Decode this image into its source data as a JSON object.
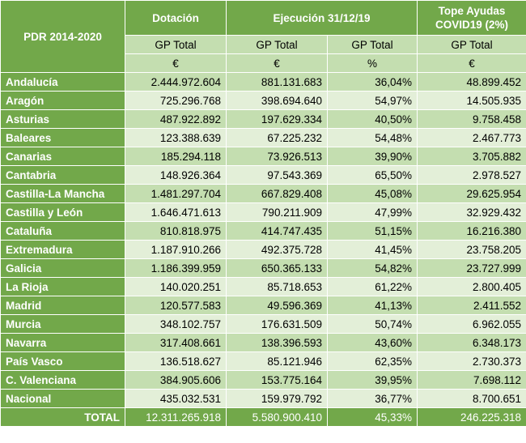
{
  "header": {
    "corner": "PDR 2014-2020",
    "groups": [
      "Dotación",
      "Ejecución 31/12/19",
      "Tope Ayudas COVID19 (2%)"
    ],
    "metrics": [
      "GP Total",
      "GP Total",
      "GP Total",
      "GP Total"
    ],
    "units": [
      "€",
      "€",
      "%",
      "€"
    ]
  },
  "rows": [
    {
      "name": "Andalucía",
      "dotacion": "2.444.972.604",
      "ejecucion": "881.131.683",
      "pct": "36,04%",
      "tope": "48.899.452"
    },
    {
      "name": "Aragón",
      "dotacion": "725.296.768",
      "ejecucion": "398.694.640",
      "pct": "54,97%",
      "tope": "14.505.935"
    },
    {
      "name": "Asturias",
      "dotacion": "487.922.892",
      "ejecucion": "197.629.334",
      "pct": "40,50%",
      "tope": "9.758.458"
    },
    {
      "name": "Baleares",
      "dotacion": "123.388.639",
      "ejecucion": "67.225.232",
      "pct": "54,48%",
      "tope": "2.467.773"
    },
    {
      "name": "Canarias",
      "dotacion": "185.294.118",
      "ejecucion": "73.926.513",
      "pct": "39,90%",
      "tope": "3.705.882"
    },
    {
      "name": "Cantabria",
      "dotacion": "148.926.364",
      "ejecucion": "97.543.369",
      "pct": "65,50%",
      "tope": "2.978.527"
    },
    {
      "name": "Castilla-La Mancha",
      "dotacion": "1.481.297.704",
      "ejecucion": "667.829.408",
      "pct": "45,08%",
      "tope": "29.625.954"
    },
    {
      "name": "Castilla y León",
      "dotacion": "1.646.471.613",
      "ejecucion": "790.211.909",
      "pct": "47,99%",
      "tope": "32.929.432"
    },
    {
      "name": "Cataluña",
      "dotacion": "810.818.975",
      "ejecucion": "414.747.435",
      "pct": "51,15%",
      "tope": "16.216.380"
    },
    {
      "name": "Extremadura",
      "dotacion": "1.187.910.266",
      "ejecucion": "492.375.728",
      "pct": "41,45%",
      "tope": "23.758.205"
    },
    {
      "name": "Galicia",
      "dotacion": "1.186.399.959",
      "ejecucion": "650.365.133",
      "pct": "54,82%",
      "tope": "23.727.999"
    },
    {
      "name": "La Rioja",
      "dotacion": "140.020.251",
      "ejecucion": "85.718.653",
      "pct": "61,22%",
      "tope": "2.800.405"
    },
    {
      "name": "Madrid",
      "dotacion": "120.577.583",
      "ejecucion": "49.596.369",
      "pct": "41,13%",
      "tope": "2.411.552"
    },
    {
      "name": "Murcia",
      "dotacion": "348.102.757",
      "ejecucion": "176.631.509",
      "pct": "50,74%",
      "tope": "6.962.055"
    },
    {
      "name": "Navarra",
      "dotacion": "317.408.661",
      "ejecucion": "138.396.593",
      "pct": "43,60%",
      "tope": "6.348.173"
    },
    {
      "name": "País Vasco",
      "dotacion": "136.518.627",
      "ejecucion": "85.121.946",
      "pct": "62,35%",
      "tope": "2.730.373"
    },
    {
      "name": "C. Valenciana",
      "dotacion": "384.905.606",
      "ejecucion": "153.775.164",
      "pct": "39,95%",
      "tope": "7.698.112"
    },
    {
      "name": "Nacional",
      "dotacion": "435.032.531",
      "ejecucion": "159.979.792",
      "pct": "36,77%",
      "tope": "8.700.651"
    }
  ],
  "total": {
    "label": "TOTAL",
    "dotacion": "12.311.265.918",
    "ejecucion": "5.580.900.410",
    "pct": "45,33%",
    "tope": "246.225.318"
  },
  "colors": {
    "header_green": "#72a84a",
    "row_dark": "#c4deb0",
    "row_light": "#e3efd8"
  }
}
